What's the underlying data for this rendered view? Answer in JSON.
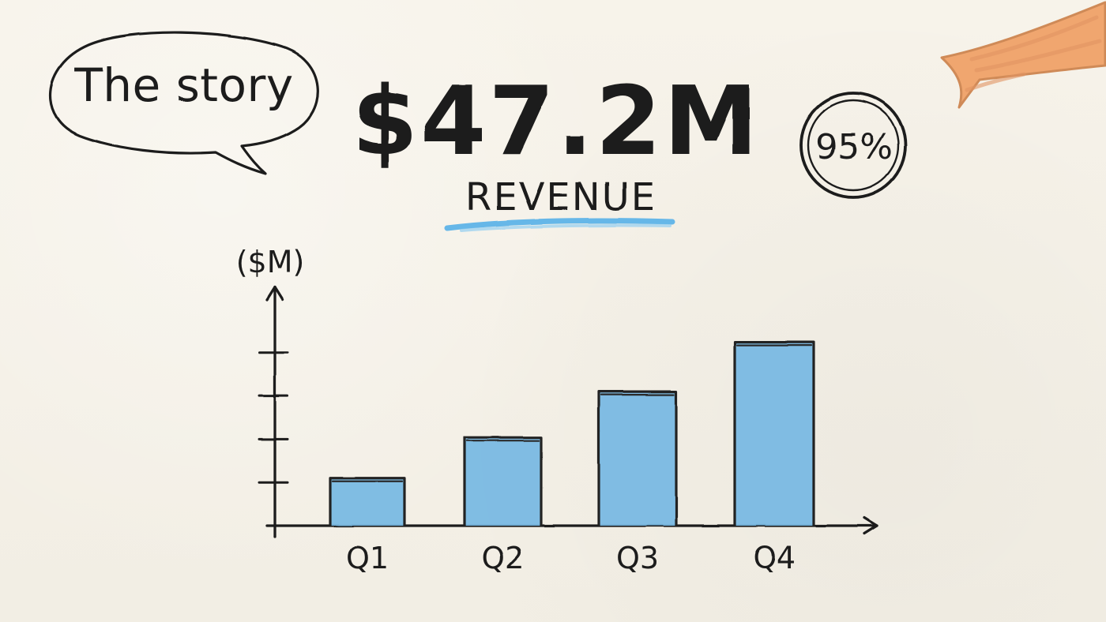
{
  "colors": {
    "paper": "#f5f1e8",
    "ink": "#1a1a1a",
    "bar": "#76b8e3",
    "underline": "#66b7e8",
    "ribbon": "#f0a66f"
  },
  "bubble": {
    "text": "The story"
  },
  "kpi": {
    "value": "$47.2M",
    "label": "REVENUE"
  },
  "badge": {
    "text": "95%"
  },
  "chart_data": {
    "type": "bar",
    "categories": [
      "Q1",
      "Q2",
      "Q3",
      "Q4"
    ],
    "values": [
      5.5,
      10.2,
      15.5,
      21.2
    ],
    "ylabel": "($M)",
    "ylim": [
      0,
      25
    ],
    "y_ticks": [
      5,
      10,
      15,
      20
    ],
    "grid": false,
    "legend": "none"
  }
}
